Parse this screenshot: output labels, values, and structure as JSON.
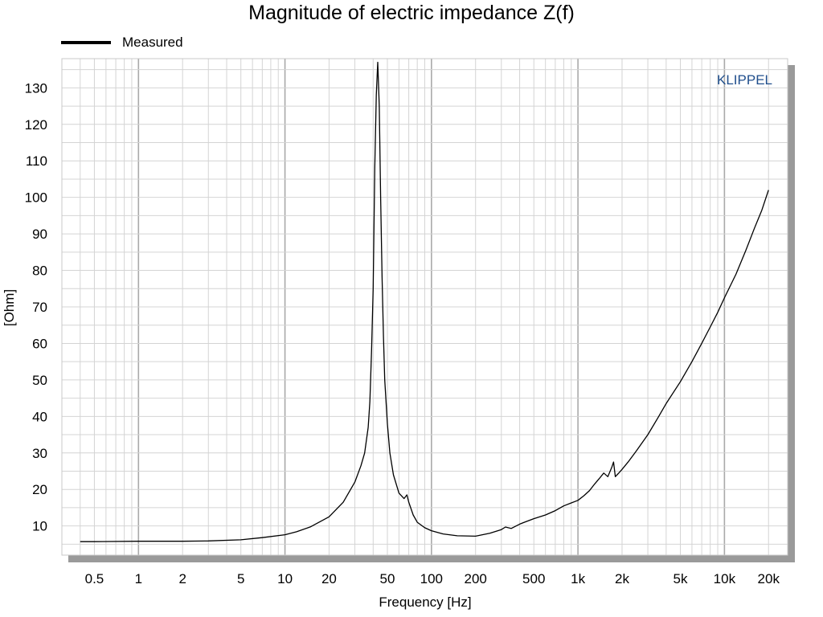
{
  "chart_data": {
    "type": "line",
    "title": "Magnitude of electric impedance Z(f)",
    "xlabel": "Frequency [Hz]",
    "ylabel": "[Ohm]",
    "xscale": "log",
    "xlim": [
      0.3,
      27000
    ],
    "ylim": [
      2,
      138
    ],
    "grid": true,
    "legend_position": "top-left",
    "watermark": "KLIPPEL",
    "x_ticks": [
      0.5,
      1,
      2,
      5,
      10,
      20,
      50,
      100,
      200,
      500,
      1000,
      2000,
      5000,
      10000,
      20000
    ],
    "x_tick_labels": [
      "0.5",
      "1",
      "2",
      "5",
      "10",
      "20",
      "50",
      "100",
      "200",
      "500",
      "1k",
      "2k",
      "5k",
      "10k",
      "20k"
    ],
    "y_ticks": [
      10,
      20,
      30,
      40,
      50,
      60,
      70,
      80,
      90,
      100,
      110,
      120,
      130
    ],
    "y_tick_labels": [
      "10",
      "20",
      "30",
      "40",
      "50",
      "60",
      "70",
      "80",
      "90",
      "100",
      "110",
      "120",
      "130"
    ],
    "series": [
      {
        "name": "Measured",
        "color": "#000000",
        "x": [
          0.4,
          0.5,
          1,
          2,
          3,
          5,
          7,
          10,
          12,
          15,
          20,
          25,
          30,
          33,
          35,
          37,
          38,
          39,
          40,
          41,
          42,
          43,
          44,
          45,
          46,
          47,
          48,
          50,
          52,
          55,
          60,
          65,
          68,
          70,
          75,
          80,
          90,
          100,
          120,
          150,
          200,
          250,
          300,
          320,
          350,
          400,
          430,
          500,
          600,
          700,
          800,
          900,
          1000,
          1100,
          1200,
          1300,
          1400,
          1500,
          1600,
          1700,
          1750,
          1800,
          1850,
          1900,
          2000,
          2200,
          2500,
          3000,
          3500,
          4000,
          5000,
          6000,
          7000,
          8000,
          9000,
          10000,
          12000,
          14000,
          16000,
          18000,
          20000
        ],
        "y": [
          5.7,
          5.7,
          5.8,
          5.8,
          5.9,
          6.2,
          6.8,
          7.6,
          8.4,
          9.8,
          12.5,
          16.5,
          22,
          26.5,
          30,
          37,
          44,
          58,
          75,
          108,
          128,
          137,
          125,
          100,
          78,
          62,
          50,
          38,
          30,
          24,
          19,
          17.5,
          18.5,
          16.5,
          13,
          11,
          9.5,
          8.7,
          7.8,
          7.3,
          7.2,
          8,
          9,
          9.7,
          9.3,
          10.5,
          11,
          12,
          13,
          14.2,
          15.5,
          16.3,
          17,
          18.3,
          19.7,
          21.5,
          23,
          24.5,
          23.5,
          26,
          27.5,
          23.5,
          24,
          24.5,
          25.5,
          27.5,
          30.5,
          35,
          39.5,
          43.5,
          49.5,
          55,
          60,
          64.5,
          68.5,
          72.5,
          79,
          85.5,
          91.5,
          96.5,
          102
        ]
      }
    ]
  }
}
